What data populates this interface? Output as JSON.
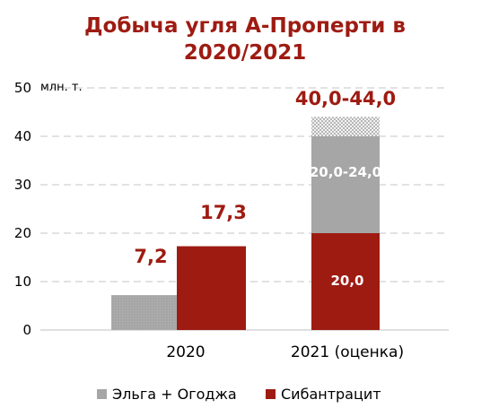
{
  "chart_data": {
    "type": "bar",
    "stacked": true,
    "title_lines": [
      "Добыча угля А-Проперти в",
      "2020/2021"
    ],
    "unit_label": "млн. т.",
    "categories": [
      "2020",
      "2021 (оценка)"
    ],
    "ylim": [
      0,
      50
    ],
    "yticks": [
      0,
      10,
      20,
      30,
      40,
      50
    ],
    "grid": true,
    "legend_position": "bottom",
    "series": [
      {
        "name": "Эльга + Огоджа",
        "values": [
          7.2,
          20.0
        ],
        "color": "#a6a6a6"
      },
      {
        "name": "Сибантрацит",
        "values": [
          17.3,
          20.0
        ],
        "color": "#9e1b12"
      }
    ],
    "range_segment": {
      "category_index": 1,
      "from": 40.0,
      "to": 44.0,
      "pattern": "dotted",
      "color": "#bfbfbf"
    },
    "annotations": {
      "elga_2020": "7,2",
      "sib_2020": "17,3",
      "total_2021": "40,0-44,0",
      "elga_2021": "20,0-24,0",
      "sib_2021": "20,0"
    },
    "colors": {
      "title": "#9e1b12",
      "accent": "#9e1b12",
      "grid": "#d9d9d9",
      "axis_text": "#000000"
    }
  }
}
